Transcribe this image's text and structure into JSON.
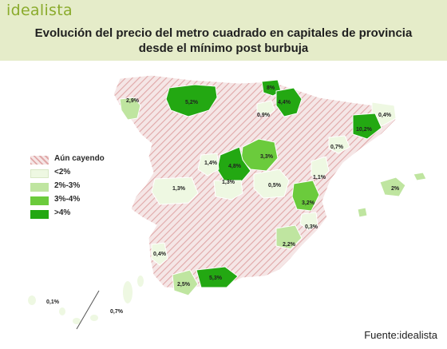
{
  "brand": "idealista",
  "title_line1": "Evolución del precio del metro cuadrado en capitales de provincia",
  "title_line2": "desde el mínimo post burbuja",
  "source": "Fuente:idealista",
  "colors": {
    "falling_base": "#f5e6e6",
    "falling_stripe": "#e0a8a8",
    "lt2": "#eef8e2",
    "2_3": "#bfe5a0",
    "3_4": "#6bcb3c",
    "gt4": "#23a812",
    "border": "#ffffff"
  },
  "legend": [
    {
      "key": "falling",
      "label": "Aún cayendo"
    },
    {
      "key": "lt2",
      "label": "<2%"
    },
    {
      "key": "2_3",
      "label": "2%-3%"
    },
    {
      "key": "3_4",
      "label": "3%-4%"
    },
    {
      "key": "gt4",
      "label": ">4%"
    }
  ],
  "regions": [
    {
      "value": "2,9%",
      "cat": "2_3"
    },
    {
      "value": "5,2%",
      "cat": "gt4"
    },
    {
      "value": "8%",
      "cat": "gt4"
    },
    {
      "value": "4,4%",
      "cat": "gt4"
    },
    {
      "value": "0,9%",
      "cat": "lt2"
    },
    {
      "value": "0,4%",
      "cat": "lt2"
    },
    {
      "value": "10,2%",
      "cat": "gt4"
    },
    {
      "value": "0,7%",
      "cat": "lt2"
    },
    {
      "value": "3,3%",
      "cat": "3_4"
    },
    {
      "value": "4,8%",
      "cat": "gt4"
    },
    {
      "value": "1,4%",
      "cat": "lt2"
    },
    {
      "value": "1,3%",
      "cat": "lt2"
    },
    {
      "value": "1,3%",
      "cat": "lt2"
    },
    {
      "value": "0,5%",
      "cat": "lt2"
    },
    {
      "value": "1,1%",
      "cat": "lt2"
    },
    {
      "value": "2%",
      "cat": "2_3"
    },
    {
      "value": "3,2%",
      "cat": "3_4"
    },
    {
      "value": "0,3%",
      "cat": "lt2"
    },
    {
      "value": "2,2%",
      "cat": "2_3"
    },
    {
      "value": "0,4%",
      "cat": "lt2"
    },
    {
      "value": "2,5%",
      "cat": "2_3"
    },
    {
      "value": "5,3%",
      "cat": "gt4"
    },
    {
      "value": "0,1%",
      "cat": "lt2"
    },
    {
      "value": "0,7%",
      "cat": "lt2"
    }
  ]
}
